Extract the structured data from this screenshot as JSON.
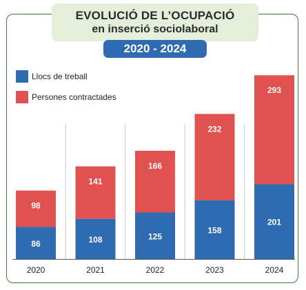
{
  "header": {
    "title_line1": "EVOLUCIÓ DE L’OCUPACIÓ",
    "title_line2": "en inserció sociolaboral",
    "period": "2020 - 2024"
  },
  "colors": {
    "blue": "#2f6bb0",
    "red": "#e0524f",
    "frame": "#3f7d3a"
  },
  "chart_data": {
    "type": "bar",
    "stacked": true,
    "categories": [
      "2020",
      "2021",
      "2022",
      "2023",
      "2024"
    ],
    "series": [
      {
        "name": "Llocs de treball",
        "values": [
          86,
          108,
          125,
          158,
          201
        ]
      },
      {
        "name": "Persones contractades",
        "values": [
          98,
          141,
          166,
          232,
          293
        ]
      }
    ],
    "title": "EVOLUCIÓ DE L’OCUPACIÓ en inserció sociolaboral",
    "subtitle": "2020 - 2024",
    "legend": "top-left"
  }
}
